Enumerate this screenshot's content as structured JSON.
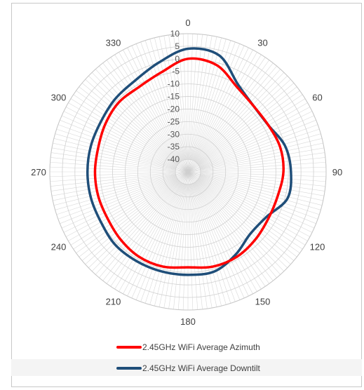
{
  "chart_data": {
    "type": "radar",
    "angle_labels": [
      "0",
      "30",
      "60",
      "90",
      "120",
      "150",
      "180",
      "210",
      "240",
      "270",
      "300",
      "330"
    ],
    "r_tick_labels": [
      "10",
      "5",
      "0",
      "-5",
      "-10",
      "-15",
      "-20",
      "-25",
      "-30",
      "-35",
      "-40"
    ],
    "rlim": [
      -45,
      10
    ],
    "angle_step_deg": 2,
    "theta_deg": [
      0,
      15,
      30,
      45,
      60,
      75,
      90,
      105,
      120,
      135,
      150,
      165,
      180,
      195,
      210,
      225,
      240,
      255,
      270,
      285,
      300,
      315,
      330,
      345
    ],
    "series": [
      {
        "name": "2.45GHz WiFi Average Azimuth",
        "color": "#ff0000",
        "values": [
          0,
          -1,
          -6,
          -8,
          -8,
          -7,
          -7,
          -8,
          -8,
          -7,
          -6,
          -6,
          -7,
          -6,
          -6,
          -7,
          -8,
          -8,
          -8,
          -8,
          -7,
          -6,
          -6,
          -4
        ]
      },
      {
        "name": "2.45GHz WiFi Average Downtilt",
        "color": "#1f4e79",
        "values": [
          4,
          3,
          -5,
          -8,
          -8,
          -5,
          -4,
          -4,
          -9,
          -10,
          -7,
          -4,
          -4,
          -4,
          -4,
          -4,
          -5,
          -5,
          -5,
          -5,
          -5,
          -4,
          -3,
          0
        ]
      }
    ]
  }
}
